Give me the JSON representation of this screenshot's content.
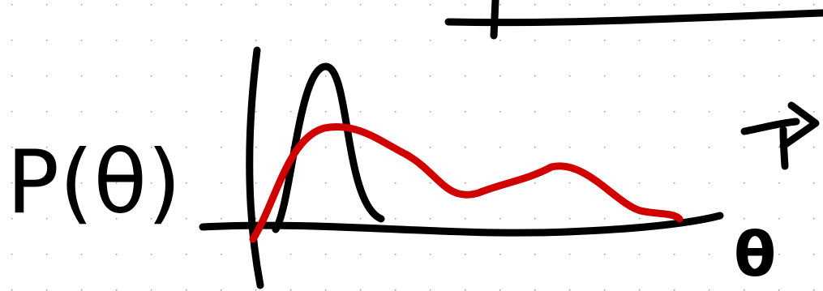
{
  "labels": {
    "y_axis": "P(θ)",
    "x_axis": "θ"
  }
}
